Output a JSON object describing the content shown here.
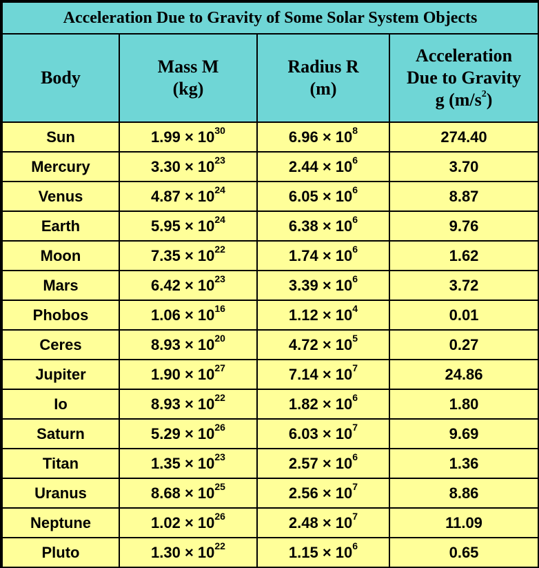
{
  "title": "Acceleration Due to Gravity of Some Solar System Objects",
  "headers": {
    "body": "Body",
    "mass": {
      "line1": "Mass M",
      "line2": "(kg)"
    },
    "radius": {
      "line1": "Radius R",
      "line2": "(m)"
    },
    "accel": {
      "line1": "Acceleration",
      "line2": "Due to Gravity",
      "line3": "g (m/s",
      "exp": "2",
      "close": ")"
    }
  },
  "times": " × 10",
  "rows": [
    {
      "body": "Sun",
      "mass_m": "1.99",
      "mass_e": "30",
      "rad_m": "6.96",
      "rad_e": "8",
      "g": "274.40"
    },
    {
      "body": "Mercury",
      "mass_m": "3.30",
      "mass_e": "23",
      "rad_m": "2.44",
      "rad_e": "6",
      "g": "3.70"
    },
    {
      "body": "Venus",
      "mass_m": "4.87",
      "mass_e": "24",
      "rad_m": "6.05",
      "rad_e": "6",
      "g": "8.87"
    },
    {
      "body": "Earth",
      "mass_m": "5.95",
      "mass_e": "24",
      "rad_m": "6.38",
      "rad_e": "6",
      "g": "9.76"
    },
    {
      "body": "Moon",
      "mass_m": "7.35",
      "mass_e": "22",
      "rad_m": "1.74",
      "rad_e": "6",
      "g": "1.62"
    },
    {
      "body": "Mars",
      "mass_m": "6.42",
      "mass_e": "23",
      "rad_m": "3.39",
      "rad_e": "6",
      "g": "3.72"
    },
    {
      "body": "Phobos",
      "mass_m": "1.06",
      "mass_e": "16",
      "rad_m": "1.12",
      "rad_e": "4",
      "g": "0.01"
    },
    {
      "body": "Ceres",
      "mass_m": "8.93",
      "mass_e": "20",
      "rad_m": "4.72",
      "rad_e": "5",
      "g": "0.27"
    },
    {
      "body": "Jupiter",
      "mass_m": "1.90",
      "mass_e": "27",
      "rad_m": "7.14",
      "rad_e": "7",
      "g": "24.86"
    },
    {
      "body": "Io",
      "mass_m": "8.93",
      "mass_e": "22",
      "rad_m": "1.82",
      "rad_e": "6",
      "g": "1.80"
    },
    {
      "body": "Saturn",
      "mass_m": "5.29",
      "mass_e": "26",
      "rad_m": "6.03",
      "rad_e": "7",
      "g": "9.69"
    },
    {
      "body": "Titan",
      "mass_m": "1.35",
      "mass_e": "23",
      "rad_m": "2.57",
      "rad_e": "6",
      "g": "1.36"
    },
    {
      "body": "Uranus",
      "mass_m": "8.68",
      "mass_e": "25",
      "rad_m": "2.56",
      "rad_e": "7",
      "g": "8.86"
    },
    {
      "body": "Neptune",
      "mass_m": "1.02",
      "mass_e": "26",
      "rad_m": "2.48",
      "rad_e": "7",
      "g": "11.09"
    },
    {
      "body": "Pluto",
      "mass_m": "1.30",
      "mass_e": "22",
      "rad_m": "1.15",
      "rad_e": "6",
      "g": "0.65"
    }
  ],
  "colors": {
    "header_bg": "#6fd6d6",
    "body_bg": "#ffff99",
    "border": "#000000"
  }
}
